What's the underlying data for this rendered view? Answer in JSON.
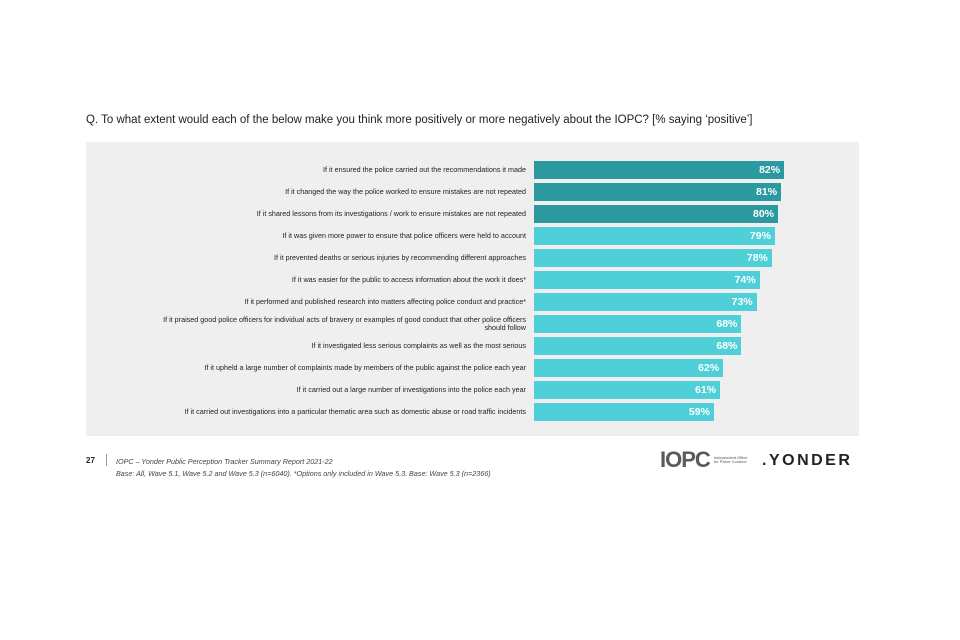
{
  "question": "Q. To what extent would each of the below make you think more positively or more negatively about the IOPC? [% saying ‘positive’]",
  "colors": {
    "dark": "#2a9aa0",
    "light": "#4fcfd7",
    "panel": "#efefef"
  },
  "chart_data": {
    "type": "bar",
    "orientation": "horizontal",
    "categories": [
      "If it ensured the police carried out the recommendations it made",
      "If it changed the way the police worked to ensure mistakes are not repeated",
      "If it shared lessons from its investigations / work to ensure mistakes are not repeated",
      "If it was given more power to ensure that police officers were held to account",
      "If it prevented deaths or serious injuries by recommending different approaches",
      "If it was easier for the public to access information about the work it does*",
      "If it performed and published research into matters affecting police conduct and practice*",
      "If it praised good police officers for individual acts of bravery or examples of good conduct that other police officers should follow",
      "If it investigated less serious complaints as well as the most serious",
      "If it upheld a large number of complaints made by members of the public against the police each year",
      "If it carried out a large number of investigations into the police each year",
      "If it carried out investigations into a particular thematic area such as domestic abuse or road traffic incidents"
    ],
    "values": [
      82,
      81,
      80,
      79,
      78,
      74,
      73,
      68,
      68,
      62,
      61,
      59
    ],
    "value_labels": [
      "82%",
      "81%",
      "80%",
      "79%",
      "78%",
      "74%",
      "73%",
      "68%",
      "68%",
      "62%",
      "61%",
      "59%"
    ],
    "highlight": [
      true,
      true,
      true,
      false,
      false,
      false,
      false,
      false,
      false,
      false,
      false,
      false
    ],
    "xlim": [
      0,
      100
    ],
    "grid": false
  },
  "footer": {
    "page_number": "27",
    "source": "IOPC – Yonder Public Perception Tracker Summary Report 2021-22",
    "base": "Base: All, Wave 5.1, Wave 5.2 and Wave 5.3 (n=6040). *Options only included in Wave 5.3. Base: Wave 5.3 (n=2366)"
  },
  "logos": {
    "iopc": "IOPC",
    "iopc_sub": "Independent Office for Police Conduct",
    "yonder": ".YONDER"
  }
}
